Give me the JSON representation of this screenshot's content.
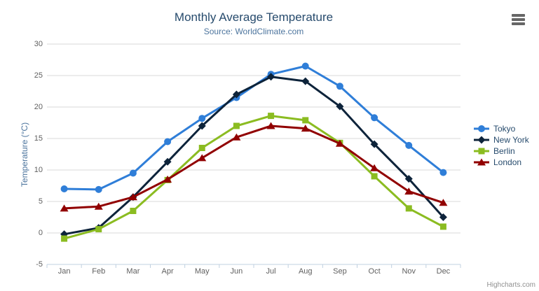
{
  "header": {
    "context_menu_icon": "hamburger-icon"
  },
  "credits": {
    "label": "Highcharts.com"
  },
  "colors": {
    "title": "#274b6d",
    "subtitle": "#4d759e",
    "axis_title": "#4d759e",
    "axis_labels": "#606060",
    "gridline": "#d8d8d8",
    "axis_line": "#c0d0e0",
    "legend_text": "#274b6d",
    "credits_text": "#909090"
  },
  "chart_data": {
    "type": "line",
    "title": "Monthly Average Temperature",
    "subtitle": "Source: WorldClimate.com",
    "xlabel": "",
    "ylabel": "Temperature (°C)",
    "categories": [
      "Jan",
      "Feb",
      "Mar",
      "Apr",
      "May",
      "Jun",
      "Jul",
      "Aug",
      "Sep",
      "Oct",
      "Nov",
      "Dec"
    ],
    "yticks": [
      -5,
      0,
      5,
      10,
      15,
      20,
      25,
      30
    ],
    "ylim": [
      -5,
      30
    ],
    "grid": true,
    "legend_position": "right",
    "series": [
      {
        "name": "Tokyo",
        "color": "#2f7ed8",
        "marker": "circle",
        "values": [
          7.0,
          6.9,
          9.5,
          14.5,
          18.2,
          21.5,
          25.2,
          26.5,
          23.3,
          18.3,
          13.9,
          9.6
        ]
      },
      {
        "name": "New York",
        "color": "#0d233a",
        "marker": "diamond",
        "values": [
          -0.2,
          0.8,
          5.7,
          11.3,
          17.0,
          22.0,
          24.8,
          24.1,
          20.1,
          14.1,
          8.6,
          2.5
        ]
      },
      {
        "name": "Berlin",
        "color": "#8bbc21",
        "marker": "square",
        "values": [
          -0.9,
          0.6,
          3.5,
          8.4,
          13.5,
          17.0,
          18.6,
          17.9,
          14.3,
          9.0,
          3.9,
          1.0
        ]
      },
      {
        "name": "London",
        "color": "#910000",
        "marker": "triangle",
        "values": [
          3.9,
          4.2,
          5.7,
          8.5,
          11.9,
          15.2,
          17.0,
          16.6,
          14.2,
          10.3,
          6.6,
          4.8
        ]
      }
    ]
  }
}
